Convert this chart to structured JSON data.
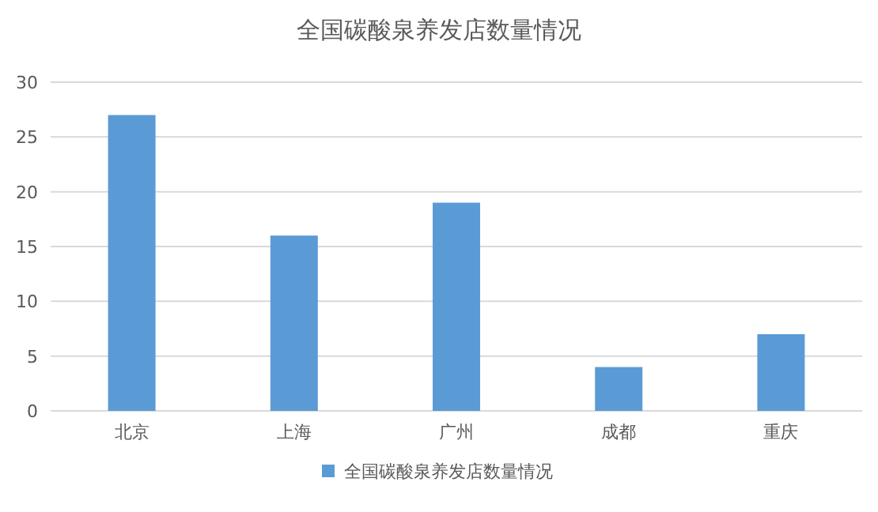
{
  "chart_data": {
    "type": "bar",
    "title": "全国碳酸泉养发店数量情况",
    "categories": [
      "北京",
      "上海",
      "广州",
      "成都",
      "重庆"
    ],
    "series": [
      {
        "name": "全国碳酸泉养发店数量情况",
        "color": "#5b9bd5",
        "values": [
          27,
          16,
          19,
          4,
          7
        ]
      }
    ],
    "ylim": [
      0,
      30
    ],
    "yticks": [
      0,
      5,
      10,
      15,
      20,
      25,
      30
    ],
    "grid": "y",
    "legend": "bottom"
  }
}
